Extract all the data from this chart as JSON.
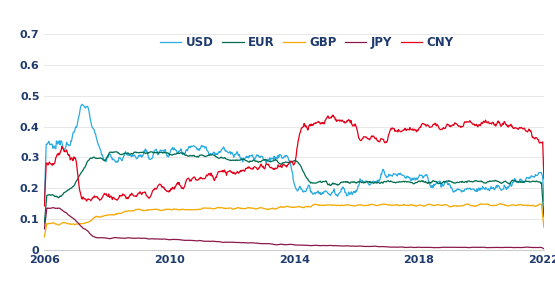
{
  "xlim": [
    2006,
    2022
  ],
  "ylim": [
    0,
    0.7
  ],
  "yticks": [
    0,
    0.1,
    0.2,
    0.3,
    0.4,
    0.5,
    0.6,
    0.7
  ],
  "xticks": [
    2006,
    2010,
    2014,
    2018,
    2022
  ],
  "colors": {
    "USD": "#29ABE2",
    "EUR": "#006D51",
    "GBP": "#F5A800",
    "JPY": "#8B1A4A",
    "CNY": "#E2001A"
  },
  "legend_labels": [
    "USD",
    "EUR",
    "GBP",
    "JPY",
    "CNY"
  ],
  "tick_color": "#1F3B6E",
  "background_color": "#ffffff",
  "grid_color": "#e8e8e8",
  "spine_color": "#cccccc"
}
